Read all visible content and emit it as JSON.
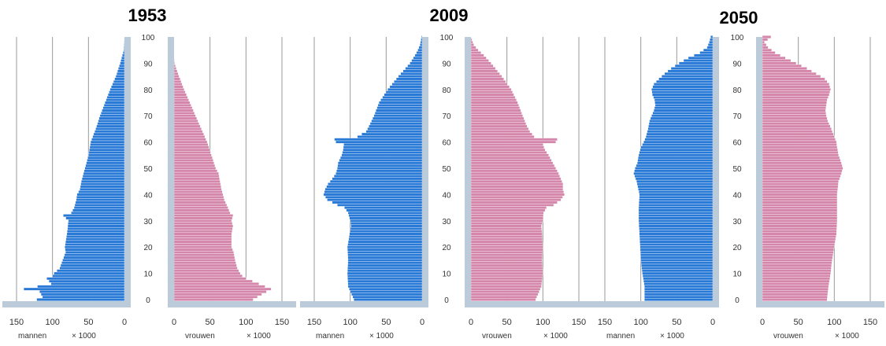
{
  "titles": [
    "1953",
    "2009",
    "2050"
  ],
  "x_tick_labels": [
    "0",
    "50",
    "100",
    "150"
  ],
  "age_tick_labels": [
    "0",
    "10",
    "20",
    "30",
    "40",
    "50",
    "60",
    "70",
    "80",
    "90",
    "100"
  ],
  "male_label": "mannen",
  "female_label": "vrouwen",
  "unit_label": "× 1000",
  "colors": {
    "male": "#2979d6",
    "female": "#d487aa",
    "axis_band": "#bccbda",
    "grid": "#9a9a9a",
    "bar_line": "#ffffff"
  },
  "chart_data": [
    {
      "type": "bar",
      "orientation": "horizontal",
      "title": "1953",
      "ylabel": "",
      "xlim": [
        0,
        150
      ],
      "ylim": [
        0,
        100
      ],
      "series": [
        {
          "name": "mannen",
          "side": "left",
          "ages": [
            0,
            1,
            3,
            4,
            6,
            8,
            9,
            10,
            12,
            15,
            18,
            20,
            25,
            30,
            32,
            33,
            35,
            38,
            40,
            42,
            45,
            48,
            50,
            55,
            60,
            65,
            70,
            75,
            80,
            85,
            90,
            93,
            95,
            100
          ],
          "values": [
            122,
            114,
            118,
            140,
            102,
            108,
            100,
            98,
            90,
            86,
            82,
            83,
            80,
            78,
            85,
            74,
            70,
            67,
            66,
            62,
            60,
            57,
            55,
            50,
            47,
            40,
            34,
            27,
            20,
            12,
            6,
            3,
            1,
            0
          ]
        },
        {
          "name": "vrouwen",
          "side": "right",
          "ages": [
            0,
            2,
            4,
            6,
            8,
            9,
            10,
            12,
            15,
            18,
            20,
            25,
            28,
            30,
            32,
            33,
            35,
            38,
            40,
            42,
            45,
            48,
            50,
            55,
            60,
            65,
            70,
            75,
            80,
            85,
            88,
            90,
            92,
            100
          ],
          "values": [
            110,
            122,
            135,
            118,
            100,
            95,
            92,
            88,
            85,
            83,
            80,
            80,
            82,
            80,
            82,
            78,
            75,
            70,
            68,
            66,
            64,
            62,
            58,
            52,
            46,
            38,
            30,
            22,
            14,
            7,
            3,
            1,
            0,
            0
          ]
        }
      ]
    },
    {
      "type": "bar",
      "orientation": "horizontal",
      "title": "2009",
      "ylabel": "",
      "xlim": [
        0,
        150
      ],
      "ylim": [
        0,
        100
      ],
      "series": [
        {
          "name": "mannen",
          "side": "left",
          "ages": [
            0,
            5,
            10,
            15,
            20,
            25,
            28,
            30,
            33,
            35,
            36,
            38,
            40,
            42,
            44,
            46,
            48,
            50,
            52,
            55,
            57,
            59,
            60,
            61,
            62,
            64,
            66,
            70,
            75,
            80,
            85,
            90,
            93,
            95,
            97,
            100
          ],
          "values": [
            95,
            103,
            104,
            103,
            104,
            101,
            99,
            100,
            103,
            108,
            118,
            132,
            137,
            135,
            131,
            125,
            120,
            118,
            117,
            112,
            110,
            109,
            120,
            122,
            90,
            78,
            74,
            67,
            60,
            48,
            33,
            17,
            10,
            6,
            3,
            1
          ]
        },
        {
          "name": "vrouwen",
          "side": "right",
          "ages": [
            0,
            5,
            10,
            15,
            20,
            25,
            28,
            30,
            33,
            35,
            36,
            38,
            40,
            42,
            44,
            46,
            48,
            50,
            52,
            55,
            57,
            59,
            60,
            61,
            62,
            64,
            66,
            70,
            75,
            80,
            85,
            90,
            93,
            95,
            97,
            100
          ],
          "values": [
            90,
            98,
            100,
            99,
            100,
            99,
            98,
            100,
            101,
            105,
            115,
            125,
            130,
            128,
            128,
            125,
            122,
            118,
            114,
            108,
            103,
            100,
            118,
            120,
            88,
            82,
            78,
            72,
            65,
            56,
            43,
            28,
            18,
            10,
            4,
            0
          ]
        }
      ]
    },
    {
      "type": "bar",
      "orientation": "horizontal",
      "title": "2050",
      "ylabel": "",
      "xlim": [
        0,
        150
      ],
      "ylim": [
        0,
        100
      ],
      "series": [
        {
          "name": "mannen",
          "side": "left",
          "ages": [
            0,
            5,
            10,
            15,
            20,
            25,
            30,
            35,
            40,
            45,
            48,
            50,
            52,
            55,
            58,
            60,
            62,
            65,
            68,
            70,
            72,
            74,
            76,
            78,
            80,
            82,
            84,
            86,
            88,
            90,
            92,
            94,
            96,
            98,
            100
          ],
          "values": [
            95,
            95,
            98,
            100,
            101,
            102,
            103,
            103,
            102,
            106,
            110,
            108,
            105,
            103,
            100,
            96,
            93,
            90,
            88,
            85,
            82,
            80,
            81,
            84,
            85,
            82,
            75,
            67,
            58,
            47,
            34,
            18,
            8,
            5,
            3
          ]
        },
        {
          "name": "vrouwen",
          "side": "right",
          "ages": [
            0,
            5,
            10,
            15,
            20,
            25,
            30,
            35,
            40,
            45,
            48,
            50,
            52,
            55,
            58,
            60,
            62,
            65,
            68,
            70,
            72,
            74,
            76,
            78,
            80,
            82,
            84,
            86,
            88,
            90,
            92,
            94,
            96,
            98,
            100
          ],
          "values": [
            90,
            92,
            95,
            97,
            100,
            103,
            104,
            104,
            104,
            106,
            110,
            112,
            110,
            106,
            104,
            103,
            100,
            96,
            91,
            89,
            88,
            89,
            90,
            93,
            95,
            93,
            87,
            75,
            62,
            47,
            32,
            18,
            8,
            3,
            12
          ]
        }
      ]
    }
  ]
}
